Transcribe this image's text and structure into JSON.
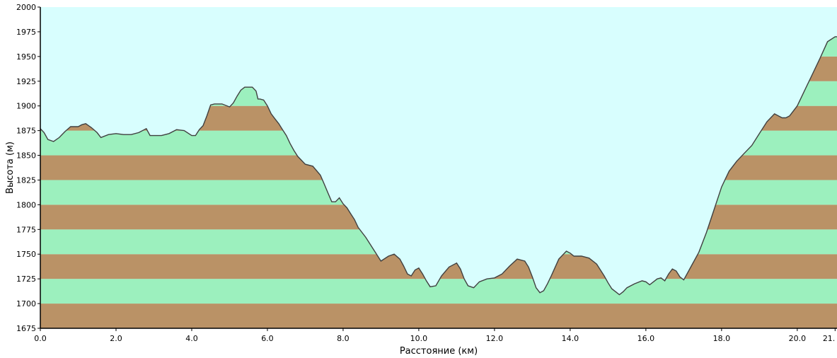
{
  "chart_data": {
    "type": "area",
    "title": "",
    "xlabel": "Расстояние   (км)",
    "ylabel": "Высота (м)",
    "xlim": [
      0,
      21.05
    ],
    "ylim": [
      1675,
      2000
    ],
    "xticks": [
      0,
      2,
      4,
      6,
      8,
      10,
      12,
      14,
      16,
      18,
      20,
      21
    ],
    "xtick_labels": [
      "0.0",
      "2.0",
      "4.0",
      "6.0",
      "8.0",
      "10.0",
      "12.0",
      "14.0",
      "16.0",
      "18.0",
      "20.0",
      "21."
    ],
    "yticks": [
      1675,
      1700,
      1725,
      1750,
      1775,
      1800,
      1825,
      1850,
      1875,
      1900,
      1925,
      1950,
      1975,
      2000
    ],
    "ytick_labels": [
      "1675",
      "1700",
      "1725",
      "1750",
      "1775",
      "1800",
      "1825",
      "1850",
      "1875",
      "1900",
      "1925",
      "1950",
      "1975",
      "2000"
    ],
    "band_step": 25,
    "grid": false,
    "colors": {
      "sky": "#d8fefe",
      "band_green": "#9cf0be",
      "band_brown": "#ba9266",
      "profile_line": "#404040",
      "axis": "#000000"
    },
    "series": [
      {
        "x": [
          0.0,
          0.1,
          0.2,
          0.35,
          0.5,
          0.65,
          0.8,
          1.0,
          1.1,
          1.2,
          1.35,
          1.5,
          1.6,
          1.8,
          2.0,
          2.2,
          2.4,
          2.6,
          2.8,
          2.9,
          3.0,
          3.2,
          3.4,
          3.6,
          3.8,
          4.0,
          4.1,
          4.2,
          4.3,
          4.4,
          4.5,
          4.6,
          4.8,
          5.0,
          5.1,
          5.2,
          5.3,
          5.4,
          5.5,
          5.6,
          5.7,
          5.75,
          5.8,
          5.9,
          6.0,
          6.1,
          6.2,
          6.3,
          6.4,
          6.5,
          6.6,
          6.7,
          6.8,
          7.0,
          7.2,
          7.4,
          7.5,
          7.6,
          7.7,
          7.8,
          7.9,
          8.0,
          8.1,
          8.2,
          8.3,
          8.4,
          8.6,
          8.8,
          9.0,
          9.2,
          9.35,
          9.5,
          9.6,
          9.7,
          9.8,
          9.9,
          10.0,
          10.1,
          10.2,
          10.3,
          10.45,
          10.6,
          10.8,
          11.0,
          11.1,
          11.2,
          11.3,
          11.45,
          11.6,
          11.8,
          12.0,
          12.1,
          12.2,
          12.4,
          12.6,
          12.8,
          12.9,
          13.0,
          13.1,
          13.2,
          13.3,
          13.4,
          13.5,
          13.7,
          13.9,
          14.0,
          14.1,
          14.3,
          14.5,
          14.7,
          14.9,
          15.0,
          15.1,
          15.2,
          15.3,
          15.4,
          15.5,
          15.7,
          15.9,
          16.0,
          16.1,
          16.2,
          16.3,
          16.4,
          16.5,
          16.6,
          16.7,
          16.8,
          16.9,
          17.0,
          17.2,
          17.4,
          17.6,
          17.8,
          18.0,
          18.2,
          18.4,
          18.6,
          18.8,
          19.0,
          19.2,
          19.4,
          19.5,
          19.6,
          19.7,
          19.8,
          20.0,
          20.2,
          20.4,
          20.6,
          20.8,
          21.0,
          21.05
        ],
        "y": [
          1877,
          1873,
          1866,
          1864,
          1868,
          1874,
          1879,
          1879,
          1881,
          1882,
          1878,
          1873,
          1868,
          1871,
          1872,
          1871,
          1871,
          1873,
          1877,
          1870,
          1870,
          1870,
          1872,
          1876,
          1875,
          1870,
          1870,
          1876,
          1880,
          1890,
          1901,
          1902,
          1902,
          1899,
          1903,
          1910,
          1916,
          1919,
          1919,
          1919,
          1915,
          1907,
          1907,
          1906,
          1900,
          1892,
          1887,
          1882,
          1876,
          1870,
          1862,
          1855,
          1849,
          1841,
          1839,
          1830,
          1821,
          1812,
          1803,
          1803,
          1807,
          1801,
          1797,
          1791,
          1785,
          1777,
          1767,
          1755,
          1743,
          1748,
          1750,
          1745,
          1738,
          1730,
          1728,
          1734,
          1736,
          1730,
          1723,
          1717,
          1718,
          1728,
          1737,
          1741,
          1735,
          1725,
          1718,
          1716,
          1722,
          1725,
          1726,
          1728,
          1730,
          1738,
          1745,
          1743,
          1737,
          1727,
          1716,
          1711,
          1713,
          1720,
          1728,
          1745,
          1753,
          1751,
          1748,
          1748,
          1746,
          1740,
          1728,
          1721,
          1715,
          1712,
          1709,
          1712,
          1716,
          1720,
          1723,
          1722,
          1719,
          1722,
          1725,
          1726,
          1723,
          1730,
          1735,
          1733,
          1727,
          1724,
          1738,
          1752,
          1772,
          1795,
          1818,
          1834,
          1844,
          1852,
          1860,
          1872,
          1884,
          1892,
          1890,
          1888,
          1888,
          1890,
          1900,
          1916,
          1932,
          1948,
          1965,
          1970,
          1970
        ]
      }
    ]
  }
}
